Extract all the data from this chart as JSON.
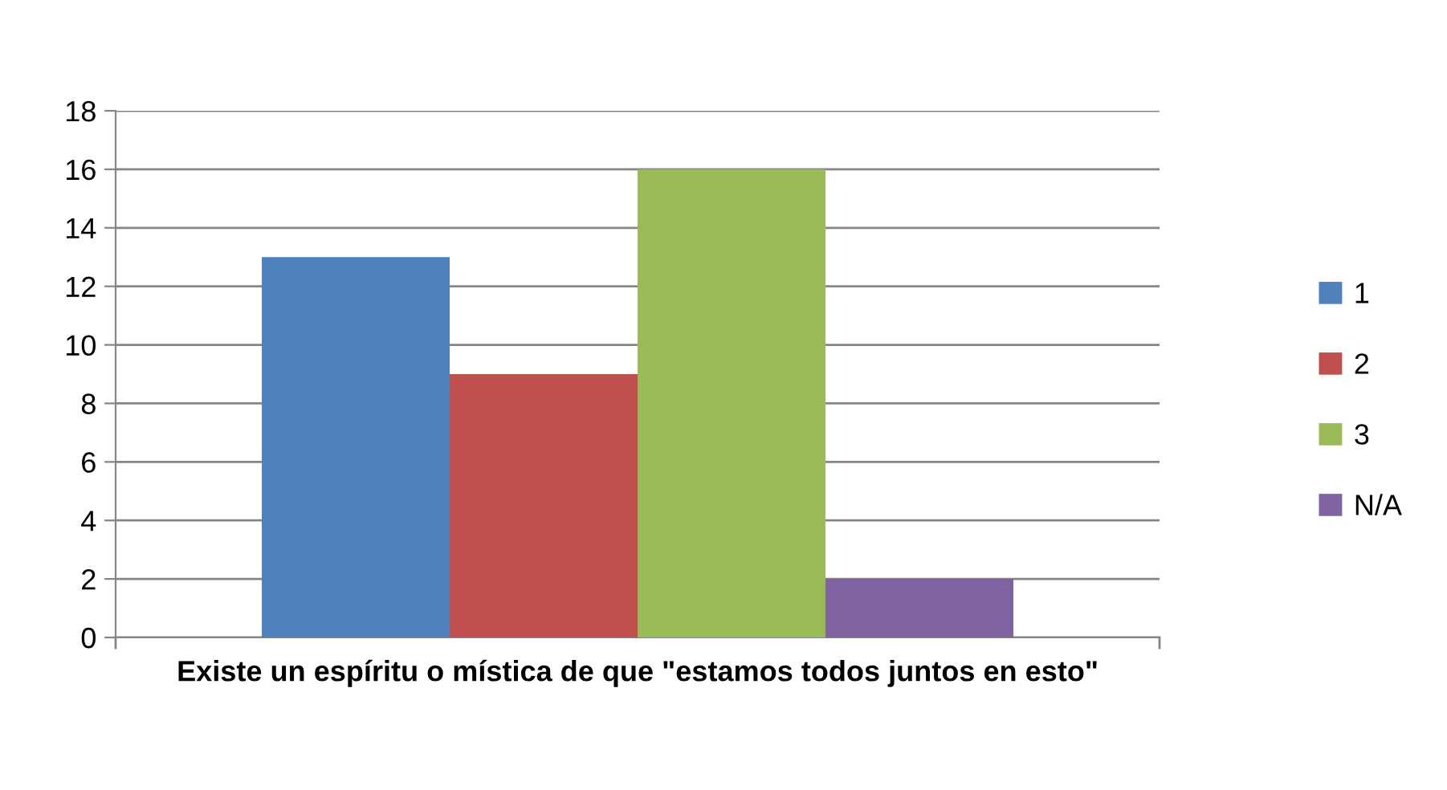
{
  "chart_data": {
    "type": "bar",
    "categories": [
      "Existe un espíritu o mística de que \"estamos todos juntos en esto\""
    ],
    "series": [
      {
        "name": "1",
        "color": "#4f81bd",
        "values": [
          13
        ]
      },
      {
        "name": "2",
        "color": "#c0504d",
        "values": [
          9
        ]
      },
      {
        "name": "3",
        "color": "#9bbb59",
        "values": [
          16
        ]
      },
      {
        "name": "N/A",
        "color": "#8064a2",
        "values": [
          2
        ]
      }
    ],
    "ylim": [
      0,
      18
    ],
    "yticks": [
      0,
      2,
      4,
      6,
      8,
      10,
      12,
      14,
      16,
      18
    ],
    "grid": "y",
    "legend": "right"
  }
}
